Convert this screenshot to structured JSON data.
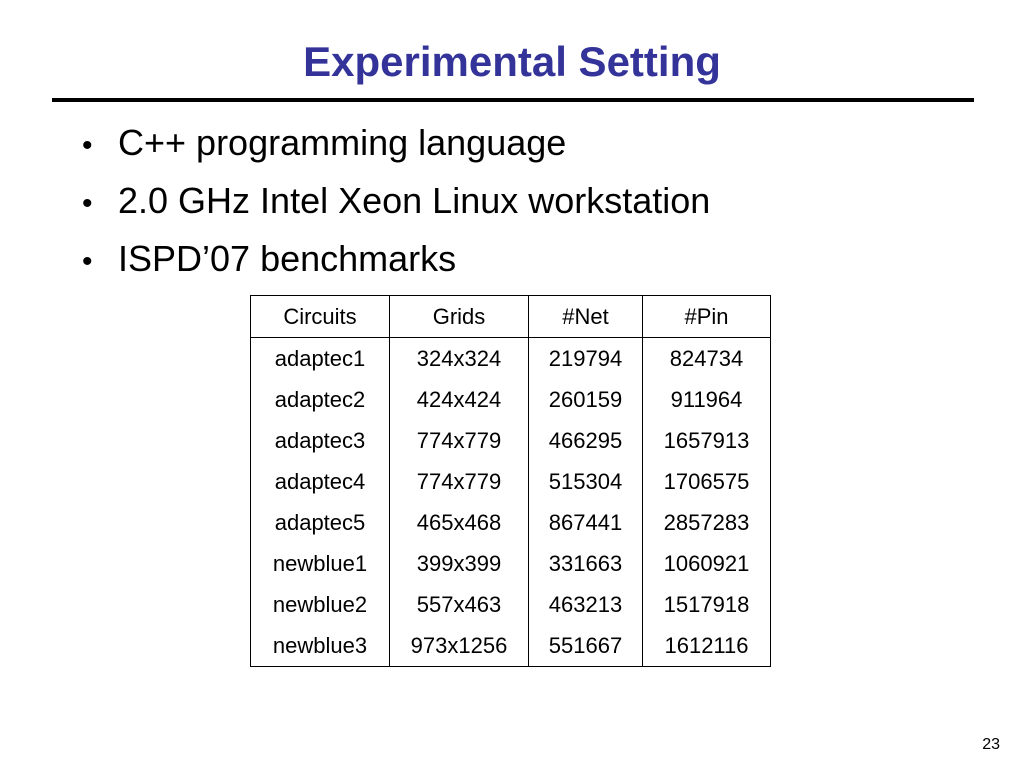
{
  "slide": {
    "title": "Experimental Setting",
    "bullets": [
      "C++ programming language",
      "2.0 GHz Intel Xeon Linux workstation",
      "ISPD’07 benchmarks"
    ],
    "bullet_glyph": "•",
    "page_number": "23"
  },
  "table": {
    "headers": [
      "Circuits",
      "Grids",
      "#Net",
      "#Pin"
    ],
    "rows": [
      [
        "adaptec1",
        "324x324",
        "219794",
        "824734"
      ],
      [
        "adaptec2",
        "424x424",
        "260159",
        "911964"
      ],
      [
        "adaptec3",
        "774x779",
        "466295",
        "1657913"
      ],
      [
        "adaptec4",
        "774x779",
        "515304",
        "1706575"
      ],
      [
        "adaptec5",
        "465x468",
        "867441",
        "2857283"
      ],
      [
        "newblue1",
        "399x399",
        "331663",
        "1060921"
      ],
      [
        "newblue2",
        "557x463",
        "463213",
        "1517918"
      ],
      [
        "newblue3",
        "973x1256",
        "551667",
        "1612116"
      ]
    ]
  },
  "colors": {
    "title": "#333399",
    "rule": "#000000"
  }
}
